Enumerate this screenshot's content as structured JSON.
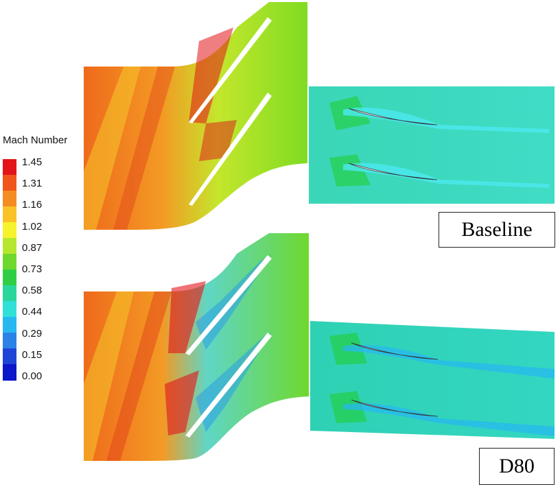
{
  "legend": {
    "title": "Mach Number",
    "ticks": [
      "1.45",
      "1.31",
      "1.16",
      "1.02",
      "0.87",
      "0.73",
      "0.58",
      "0.44",
      "0.29",
      "0.15",
      "0.00"
    ],
    "colors": [
      "#e2141a",
      "#f0561c",
      "#f58c22",
      "#fbc227",
      "#f6f22b",
      "#b6e72f",
      "#6fd82d",
      "#2ecf45",
      "#29d79c",
      "#2fe0d7",
      "#27b8f0",
      "#2b82e6",
      "#1f45d6",
      "#0b17c9"
    ]
  },
  "captions": {
    "baseline": "Baseline",
    "d80": "D80"
  },
  "colors": {
    "supersonic": "#ef5a1c",
    "transonic": "#f3a424",
    "sonic_green": "#8fdd1f",
    "subsonic": "#36dbc0",
    "low": "#2a9fe6",
    "blade": "#ffffff"
  }
}
